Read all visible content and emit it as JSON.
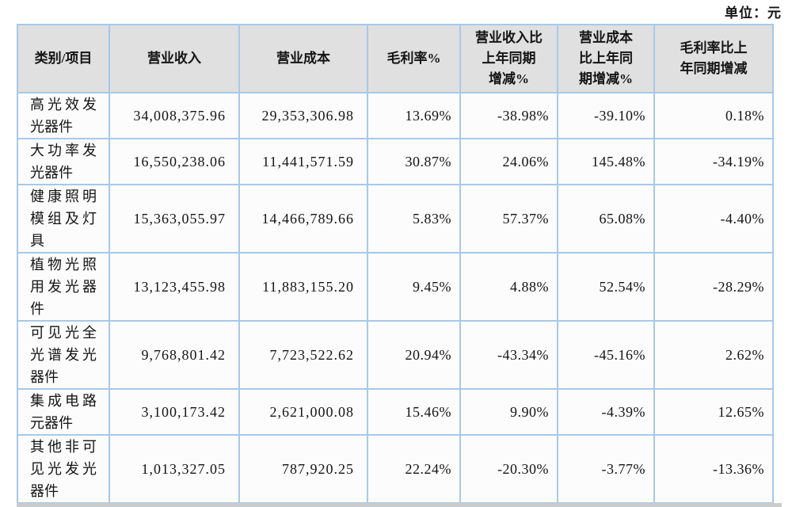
{
  "header": {
    "unit_label": "单位：元"
  },
  "table": {
    "columns": [
      "类别/项目",
      "营业收入",
      "营业成本",
      "毛利率%",
      "营业收入比\n上年同期\n增减%",
      "营业成本\n比上年同\n期增减%",
      "毛利率比上\n年同期增减"
    ],
    "rows": [
      {
        "category": "高光效发光器件",
        "revenue": "34,008,375.96",
        "cost": "29,353,306.98",
        "margin": "13.69%",
        "revenue_yoy": "-38.98%",
        "cost_yoy": "-39.10%",
        "margin_yoy": "0.18%"
      },
      {
        "category": "大功率发光器件",
        "revenue": "16,550,238.06",
        "cost": "11,441,571.59",
        "margin": "30.87%",
        "revenue_yoy": "24.06%",
        "cost_yoy": "145.48%",
        "margin_yoy": "-34.19%"
      },
      {
        "category": "健康照明模组及灯具",
        "revenue": "15,363,055.97",
        "cost": "14,466,789.66",
        "margin": "5.83%",
        "revenue_yoy": "57.37%",
        "cost_yoy": "65.08%",
        "margin_yoy": "-4.40%"
      },
      {
        "category": "植物光照用发光器件",
        "revenue": "13,123,455.98",
        "cost": "11,883,155.20",
        "margin": "9.45%",
        "revenue_yoy": "4.88%",
        "cost_yoy": "52.54%",
        "margin_yoy": "-28.29%"
      },
      {
        "category": "可见光全光谱发光器件",
        "revenue": "9,768,801.42",
        "cost": "7,723,522.62",
        "margin": "20.94%",
        "revenue_yoy": "-43.34%",
        "cost_yoy": "-45.16%",
        "margin_yoy": "2.62%"
      },
      {
        "category": "集成电路元器件",
        "revenue": "3,100,173.42",
        "cost": "2,621,000.08",
        "margin": "15.46%",
        "revenue_yoy": "9.90%",
        "cost_yoy": "-4.39%",
        "margin_yoy": "12.65%"
      },
      {
        "category": "其他非可见光发光器件",
        "revenue": "1,013,327.05",
        "cost": "787,920.25",
        "margin": "22.24%",
        "revenue_yoy": "-20.30%",
        "cost_yoy": "-3.77%",
        "margin_yoy": "-13.36%"
      }
    ]
  },
  "colors": {
    "table_border": "#a6c9ea",
    "header_background": "#e0e0e0",
    "cell_background": "#fcfcfc"
  }
}
